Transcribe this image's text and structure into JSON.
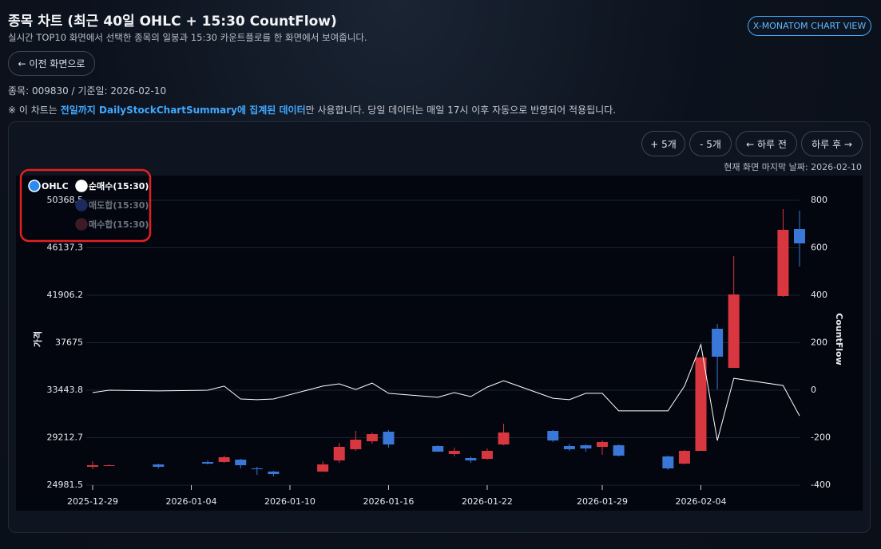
{
  "page": {
    "title": "종목 차트 (최근 40일 OHLC + 15:30 CountFlow)",
    "subtitle": "실시간 TOP10 화면에서 선택한 종목의 일봉과 15:30 카운트플로를 한 화면에서 보여줍니다.",
    "view_button": "X-MONATOM CHART VIEW",
    "back_button": "← 이전 화면으로",
    "meta": "종목: 009830 / 기준일: 2026-02-10",
    "notice_prefix": "※ 이 차트는",
    "notice_highlight": "전일까지 DailyStockChartSummary에 집계된 데이터",
    "notice_suffix": "만 사용합니다. 당일 데이터는 매일 17시 이후 자동으로 반영되어 적용됩니다.",
    "controls": [
      "+ 5개",
      "- 5개",
      "← 하루 전",
      "하루 후 →"
    ],
    "last_date": "현재 화면 마지막 날짜: 2026-02-10"
  },
  "chart_data": {
    "type": "candlestick",
    "y_label": "가격",
    "y2_label": "CountFlow",
    "x": [
      "2025-12-29",
      "2025-12-30",
      "2026-01-02",
      "2026-01-05",
      "2026-01-06",
      "2026-01-07",
      "2026-01-08",
      "2026-01-09",
      "2026-01-12",
      "2026-01-13",
      "2026-01-14",
      "2026-01-15",
      "2026-01-16",
      "2026-01-19",
      "2026-01-20",
      "2026-01-21",
      "2026-01-22",
      "2026-01-23",
      "2026-01-26",
      "2026-01-27",
      "2026-01-28",
      "2026-01-29",
      "2026-01-30",
      "2026-02-02",
      "2026-02-03",
      "2026-02-04",
      "2026-02-05",
      "2026-02-06",
      "2026-02-09",
      "2026-02-10"
    ],
    "xlim": [
      "2025-12-29",
      "2026-02-10"
    ],
    "xticks": [
      "2025-12-29",
      "2026-01-04",
      "2026-01-10",
      "2026-01-16",
      "2026-01-22",
      "2026-01-29",
      "2026-02-04"
    ],
    "ylim": [
      24981.5,
      50368.5
    ],
    "yticks": [
      24981.5,
      29212.7,
      33443.8,
      37675,
      41906.2,
      46137.3,
      50368.5
    ],
    "y2lim": [
      -400,
      800
    ],
    "y2ticks": [
      -400,
      -200,
      0,
      200,
      400,
      600,
      800
    ],
    "grid": true,
    "up_color": "#d9373f",
    "down_color": "#3a78d8",
    "series": [
      {
        "name": "OHLC",
        "color": "#2a8bf2",
        "type": "candlestick",
        "open": [
          26617,
          26688,
          26830,
          27044,
          27044,
          27257,
          26475,
          26190,
          26190,
          27186,
          28182,
          28893,
          29746,
          28466,
          27755,
          27399,
          27328,
          28608,
          29817,
          28466,
          28537,
          28395,
          28537,
          27541,
          26901,
          28039,
          38919,
          35434,
          41835,
          47808
        ],
        "high": [
          27115,
          26830,
          26901,
          27186,
          27613,
          27328,
          26617,
          26261,
          27115,
          28750,
          29817,
          29675,
          29888,
          28537,
          28324,
          27541,
          28253,
          30457,
          29888,
          28680,
          28608,
          28964,
          28608,
          27613,
          28110,
          36430,
          39346,
          45390,
          49586,
          49444
        ],
        "low": [
          26404,
          26688,
          26475,
          26830,
          26972,
          26475,
          25906,
          25764,
          26190,
          26972,
          28039,
          28680,
          28324,
          27968,
          27541,
          26972,
          27257,
          28537,
          28821,
          28039,
          27968,
          27684,
          27541,
          26332,
          26830,
          28110,
          33515,
          35434,
          41764,
          44466
        ],
        "close": [
          26759,
          26759,
          26617,
          26901,
          27470,
          26759,
          26404,
          25977,
          26830,
          28395,
          29035,
          29533,
          28608,
          27968,
          28039,
          27186,
          28039,
          29675,
          28964,
          28182,
          28253,
          28821,
          27613,
          26475,
          28039,
          36359,
          36430,
          41977,
          47737,
          46528
        ]
      },
      {
        "name": "순매수(15:30)",
        "color": "#ffffff",
        "type": "line",
        "axis": "y2",
        "values": [
          -10,
          0,
          -3,
          0,
          17,
          -37,
          -40,
          -37,
          17,
          27,
          3,
          30,
          -13,
          -30,
          -10,
          -27,
          13,
          40,
          -34,
          -40,
          -13,
          -13,
          -87,
          -87,
          17,
          192,
          -212,
          50,
          20,
          -108
        ]
      },
      {
        "name": "매도합(15:30)",
        "color": "#1c2a5c",
        "type": "line",
        "axis": "y2",
        "visible": false
      },
      {
        "name": "매수합(15:30)",
        "color": "#3c1a26",
        "type": "line",
        "axis": "y2",
        "visible": false
      }
    ]
  }
}
